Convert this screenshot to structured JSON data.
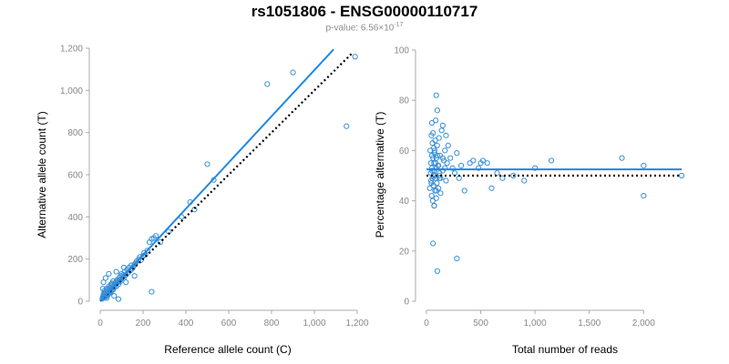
{
  "title": "rs1051806 - ENSG00000110717",
  "subtitle": {
    "prefix": "p-value: 6.56×10",
    "exponent": "-17"
  },
  "colors": {
    "points": "#3a8fd6",
    "fit_line": "#1e88e5",
    "reference_line": "#000000",
    "axis": "#aaaaaa",
    "tick_text": "#888888"
  },
  "chart_data": [
    {
      "type": "scatter",
      "name": "left",
      "title": "",
      "xlabel": "Reference allele count (C)",
      "ylabel": "Alternative allele count (T)",
      "xlim": [
        0,
        1200
      ],
      "ylim": [
        0,
        1200
      ],
      "xticks": [
        0,
        200,
        400,
        600,
        800,
        1000,
        1200
      ],
      "yticks": [
        0,
        200,
        400,
        600,
        800,
        1000,
        1200
      ],
      "xtick_labels": [
        "0",
        "200",
        "400",
        "600",
        "800",
        "1,000",
        "1,200"
      ],
      "ytick_labels": [
        "0",
        "200",
        "400",
        "600",
        "800",
        "1,000",
        "1,200"
      ],
      "fit_line": {
        "x": [
          0,
          1090
        ],
        "y": [
          0,
          1195
        ]
      },
      "reference_line": {
        "x": [
          0,
          1175
        ],
        "y": [
          0,
          1175
        ]
      },
      "points": {
        "x": [
          10,
          12,
          14,
          15,
          16,
          18,
          18,
          20,
          20,
          22,
          24,
          25,
          26,
          28,
          30,
          30,
          32,
          34,
          35,
          36,
          38,
          40,
          40,
          42,
          44,
          45,
          46,
          48,
          50,
          50,
          52,
          54,
          55,
          58,
          60,
          60,
          62,
          65,
          68,
          70,
          72,
          75,
          78,
          80,
          82,
          85,
          88,
          90,
          92,
          95,
          98,
          100,
          105,
          108,
          110,
          115,
          120,
          125,
          130,
          135,
          140,
          145,
          150,
          155,
          160,
          165,
          170,
          180,
          185,
          190,
          200,
          205,
          210,
          220,
          230,
          240,
          250,
          260,
          280,
          320,
          380,
          420,
          440,
          500,
          530,
          780,
          900,
          1150,
          1190,
          12,
          15,
          22,
          25,
          30,
          40,
          55,
          65,
          75,
          85,
          110,
          120,
          160,
          240
        ],
        "y": [
          12,
          20,
          15,
          30,
          25,
          18,
          40,
          22,
          50,
          28,
          35,
          20,
          45,
          38,
          25,
          60,
          33,
          42,
          55,
          30,
          48,
          36,
          70,
          44,
          52,
          40,
          65,
          58,
          45,
          80,
          62,
          50,
          75,
          68,
          55,
          95,
          72,
          65,
          85,
          78,
          90,
          70,
          100,
          88,
          95,
          80,
          110,
          100,
          92,
          120,
          105,
          130,
          115,
          125,
          110,
          140,
          125,
          150,
          135,
          160,
          145,
          170,
          155,
          165,
          175,
          180,
          190,
          200,
          210,
          195,
          215,
          230,
          220,
          240,
          280,
          295,
          300,
          310,
          280,
          330,
          400,
          470,
          435,
          650,
          575,
          1030,
          1085,
          830,
          1160,
          60,
          90,
          35,
          110,
          15,
          130,
          85,
          25,
          140,
          10,
          160,
          90,
          120,
          45
        ]
      }
    },
    {
      "type": "scatter",
      "name": "right",
      "title": "",
      "xlabel": "Total number of reads",
      "ylabel": "Percentage alternative (T)",
      "xlim": [
        0,
        2350
      ],
      "ylim": [
        0,
        100
      ],
      "xticks": [
        0,
        500,
        1000,
        1500,
        2000
      ],
      "yticks": [
        0,
        20,
        40,
        60,
        80,
        100
      ],
      "xtick_labels": [
        "0",
        "500",
        "1,000",
        "1,500",
        "2,000"
      ],
      "ytick_labels": [
        "0",
        "20",
        "40",
        "60",
        "80",
        "100"
      ],
      "fit_line": {
        "x": [
          0,
          2350
        ],
        "y": [
          52.5,
          52.5
        ]
      },
      "reference_line": {
        "x": [
          0,
          2350
        ],
        "y": [
          50,
          50
        ]
      },
      "points": {
        "x": [
          30,
          35,
          40,
          42,
          45,
          48,
          50,
          52,
          55,
          58,
          60,
          62,
          65,
          68,
          70,
          72,
          75,
          78,
          80,
          82,
          85,
          88,
          90,
          92,
          95,
          98,
          100,
          105,
          110,
          115,
          120,
          125,
          130,
          140,
          150,
          160,
          170,
          180,
          190,
          200,
          220,
          240,
          260,
          280,
          300,
          320,
          350,
          400,
          430,
          480,
          500,
          520,
          560,
          600,
          650,
          700,
          800,
          900,
          1000,
          1150,
          1800,
          2000,
          2000,
          2350,
          40,
          45,
          50,
          55,
          60,
          65,
          70,
          75,
          80,
          85,
          90,
          100,
          110,
          120,
          130,
          150,
          170,
          60,
          70,
          90,
          280,
          50,
          120,
          150,
          180,
          100
        ],
        "y": [
          45,
          60,
          55,
          48,
          66,
          42,
          58,
          52,
          63,
          40,
          67,
          50,
          46,
          61,
          55,
          38,
          59,
          44,
          64,
          49,
          72,
          53,
          41,
          57,
          47,
          62,
          76,
          54,
          45,
          65,
          50,
          58,
          43,
          68,
          52,
          56,
          60,
          48,
          55,
          62,
          57,
          53,
          51,
          59,
          49,
          54,
          44,
          55,
          56,
          53,
          55,
          56,
          55,
          45,
          51,
          49,
          50,
          48,
          53,
          56,
          57,
          54,
          42,
          50,
          51,
          47,
          53,
          49,
          57,
          46,
          52,
          60,
          50,
          55,
          44,
          58,
          54,
          51,
          49,
          57,
          53,
          23,
          38,
          82,
          17,
          71,
          49,
          70,
          66,
          12
        ]
      }
    }
  ]
}
